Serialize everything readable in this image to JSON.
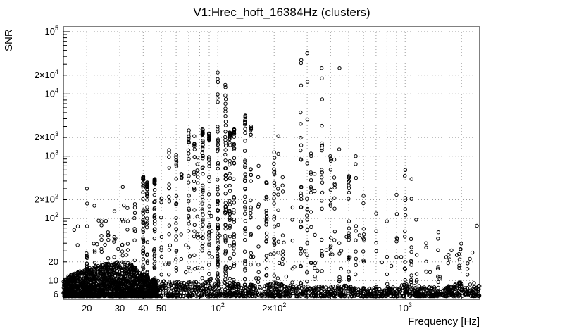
{
  "page": {
    "background": "#ffffff"
  },
  "chart_data": {
    "type": "scatter",
    "title": "V1:Hrec_hoft_16384Hz (clusters)",
    "xlabel": "Frequency [Hz]",
    "ylabel": "SNR",
    "xscale": "log",
    "yscale": "log",
    "xlim": [
      15,
      2500
    ],
    "ylim": [
      5,
      120000
    ],
    "grid": true,
    "grid_color": "#999999",
    "marker": {
      "shape": "open-circle",
      "radius": 2.2,
      "color": "#000000"
    },
    "x_ticks": [
      {
        "v": 20,
        "label": "20"
      },
      {
        "v": 30,
        "label": "30"
      },
      {
        "v": 40,
        "label": "40"
      },
      {
        "v": 50,
        "label": "50"
      },
      {
        "v": 100,
        "label": "10^2"
      },
      {
        "v": 200,
        "label": "2×10^2"
      },
      {
        "v": 1000,
        "label": "10^3"
      }
    ],
    "y_ticks": [
      {
        "v": 100000,
        "label": "10^5"
      },
      {
        "v": 20000,
        "label": "2×10^4"
      },
      {
        "v": 10000,
        "label": "10^4"
      },
      {
        "v": 2000,
        "label": "2×10^3"
      },
      {
        "v": 1000,
        "label": "10^3"
      },
      {
        "v": 200,
        "label": "2×10^2"
      },
      {
        "v": 100,
        "label": "10^2"
      },
      {
        "v": 20,
        "label": "20"
      },
      {
        "v": 10,
        "label": "10"
      },
      {
        "v": 6,
        "label": "6"
      }
    ],
    "x_grid": [
      20,
      30,
      40,
      50,
      60,
      70,
      80,
      90,
      100,
      200,
      300,
      400,
      500,
      600,
      700,
      800,
      900,
      1000,
      2000
    ],
    "y_grid": [
      6,
      10,
      20,
      100,
      200,
      1000,
      2000,
      10000,
      20000,
      100000
    ],
    "baseline": {
      "description": "dense noise band of event triggers along the bottom of the plot",
      "ymin": 5.6,
      "envelope": [
        [
          15,
          11
        ],
        [
          18,
          14
        ],
        [
          22,
          17
        ],
        [
          27,
          20
        ],
        [
          33,
          20
        ],
        [
          38,
          15
        ],
        [
          42,
          12
        ],
        [
          48,
          10
        ],
        [
          60,
          9.5
        ],
        [
          80,
          9.5
        ],
        [
          95,
          12
        ],
        [
          105,
          10
        ],
        [
          130,
          9
        ],
        [
          160,
          8.5
        ],
        [
          200,
          9.5
        ],
        [
          240,
          8.5
        ],
        [
          300,
          8.5
        ],
        [
          400,
          8
        ],
        [
          500,
          8.5
        ],
        [
          650,
          7.8
        ],
        [
          800,
          7.8
        ],
        [
          1000,
          9
        ],
        [
          1300,
          8
        ],
        [
          1600,
          8
        ],
        [
          2000,
          9.5
        ],
        [
          2500,
          9
        ]
      ],
      "n": 3000,
      "low_f_fraction": 0.5,
      "low_f_range": [
        15,
        48
      ],
      "outlier_n": 70
    },
    "cluster_fields": [
      "frequency_hz",
      "dense_top_snr",
      "max_snr",
      "n_points"
    ],
    "clusters": [
      [
        20,
        120,
        300,
        14
      ],
      [
        22,
        60,
        160,
        9
      ],
      [
        24,
        40,
        90,
        7
      ],
      [
        26,
        30,
        60,
        6
      ],
      [
        28,
        60,
        130,
        8
      ],
      [
        31,
        100,
        320,
        10
      ],
      [
        33,
        40,
        90,
        6
      ],
      [
        36,
        80,
        170,
        10
      ],
      [
        40,
        420,
        470,
        55
      ],
      [
        42,
        300,
        380,
        34
      ],
      [
        46,
        360,
        430,
        45
      ],
      [
        50,
        100,
        210,
        10
      ],
      [
        55,
        700,
        1250,
        16
      ],
      [
        60,
        800,
        1050,
        26
      ],
      [
        64,
        200,
        520,
        9
      ],
      [
        70,
        1500,
        2600,
        26
      ],
      [
        75,
        1200,
        2100,
        22
      ],
      [
        78,
        500,
        950,
        10
      ],
      [
        83,
        2200,
        2700,
        50
      ],
      [
        90,
        1800,
        2300,
        38
      ],
      [
        100,
        2500,
        22000,
        60
      ],
      [
        110,
        2300,
        14000,
        55
      ],
      [
        116,
        2000,
        2400,
        42
      ],
      [
        122,
        2300,
        2700,
        48
      ],
      [
        140,
        2500,
        4500,
        46
      ],
      [
        150,
        1800,
        3000,
        28
      ],
      [
        165,
        300,
        700,
        9
      ],
      [
        182,
        320,
        380,
        24
      ],
      [
        200,
        700,
        1150,
        22
      ],
      [
        210,
        400,
        2100,
        10
      ],
      [
        222,
        200,
        460,
        9
      ],
      [
        250,
        60,
        150,
        7
      ],
      [
        278,
        900,
        35000,
        28
      ],
      [
        300,
        600,
        45000,
        15
      ],
      [
        315,
        500,
        1100,
        12
      ],
      [
        330,
        200,
        520,
        8
      ],
      [
        360,
        2000,
        26000,
        20
      ],
      [
        400,
        500,
        1000,
        13
      ],
      [
        420,
        300,
        880,
        9
      ],
      [
        445,
        100,
        26000,
        8
      ],
      [
        500,
        380,
        480,
        26
      ],
      [
        545,
        300,
        1000,
        11
      ],
      [
        600,
        100,
        230,
        7
      ],
      [
        700,
        40,
        120,
        6
      ],
      [
        800,
        30,
        90,
        5
      ],
      [
        900,
        80,
        240,
        8
      ],
      [
        1000,
        150,
        600,
        18
      ],
      [
        1080,
        100,
        430,
        13
      ],
      [
        1150,
        40,
        95,
        6
      ],
      [
        1300,
        15,
        40,
        5
      ],
      [
        1500,
        20,
        60,
        6
      ],
      [
        1700,
        10,
        26,
        5
      ],
      [
        1950,
        14,
        22,
        9
      ],
      [
        2150,
        12,
        19,
        7
      ]
    ]
  }
}
